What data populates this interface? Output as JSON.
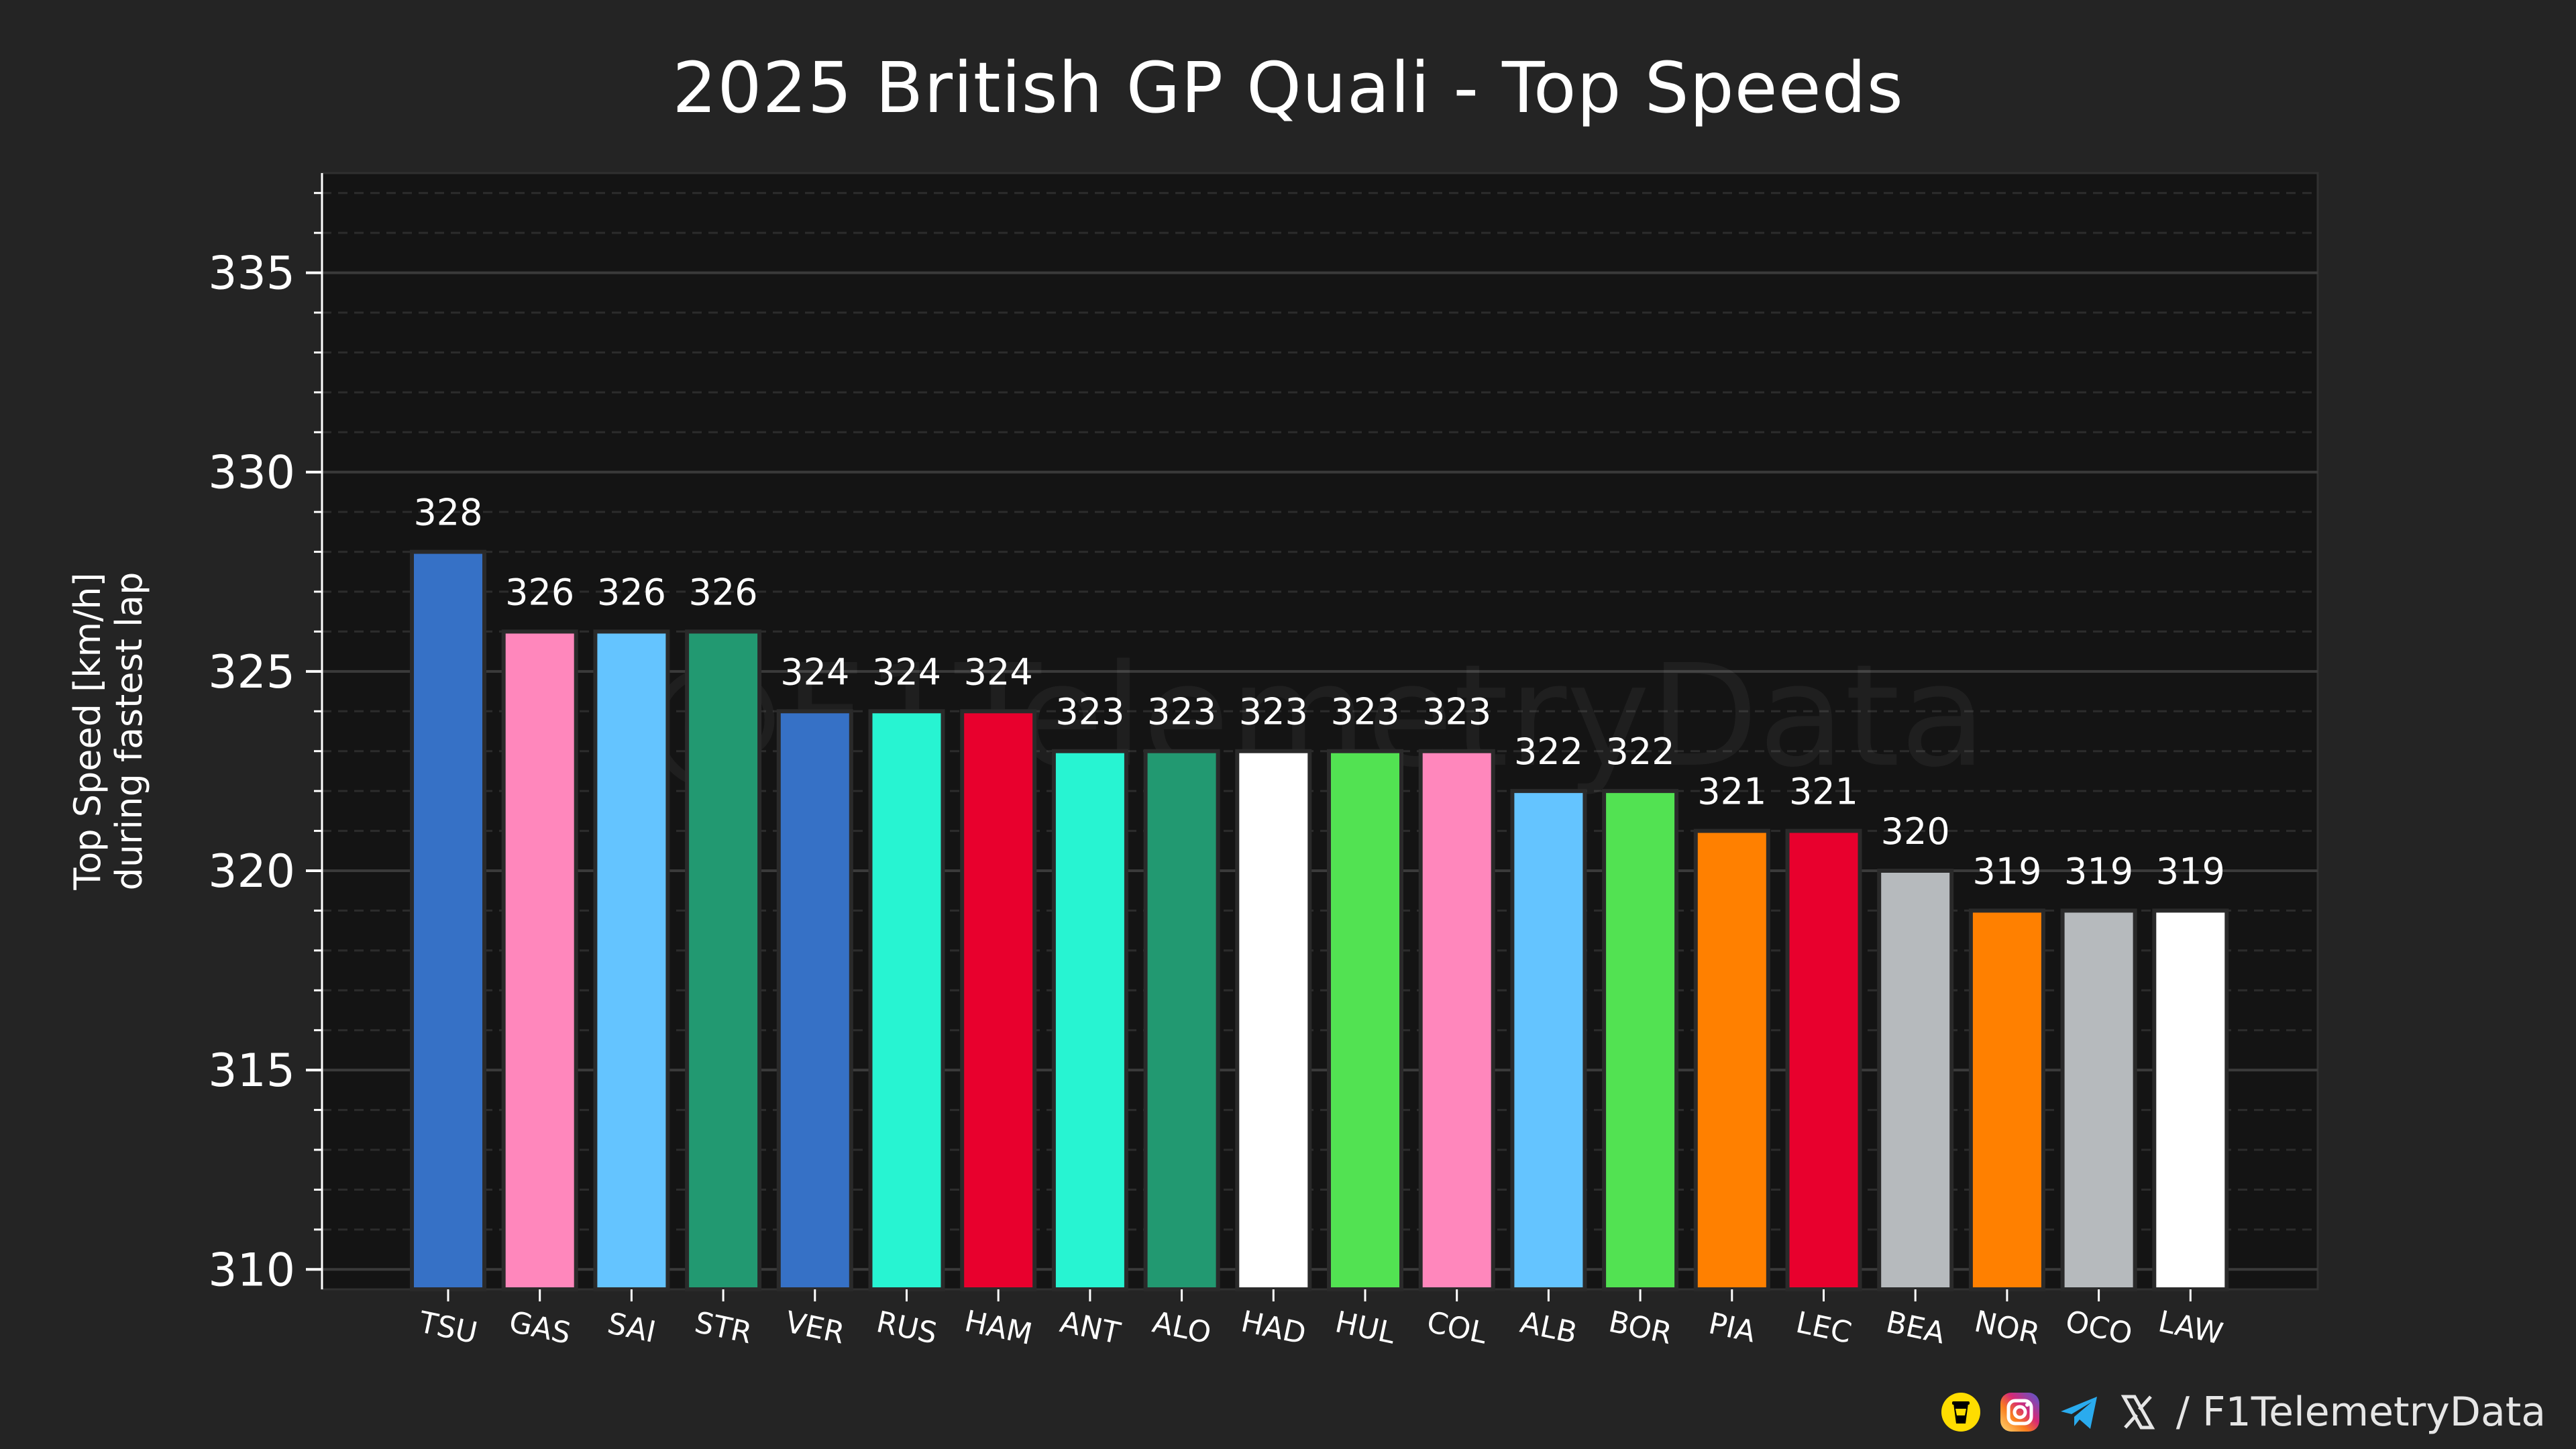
{
  "chart_data": {
    "type": "bar",
    "title": "2025 British GP Quali - Top Speeds",
    "ylabel_lines": [
      "Top Speed [km/h]",
      "during fastest lap"
    ],
    "xlabel": "",
    "ylim": [
      309.5,
      337.5
    ],
    "y_ticks": [
      310,
      315,
      320,
      325,
      330,
      335
    ],
    "y_minor_step": 1,
    "grid": true,
    "categories": [
      "TSU",
      "GAS",
      "SAI",
      "STR",
      "VER",
      "RUS",
      "HAM",
      "ANT",
      "ALO",
      "HAD",
      "HUL",
      "COL",
      "ALB",
      "BOR",
      "PIA",
      "LEC",
      "BEA",
      "NOR",
      "OCO",
      "LAW"
    ],
    "values": [
      328,
      326,
      326,
      326,
      324,
      324,
      324,
      323,
      323,
      323,
      323,
      323,
      322,
      322,
      321,
      321,
      320,
      319,
      319,
      319
    ],
    "colors": [
      "#3671C6",
      "#FF87BC",
      "#64C4FF",
      "#229971",
      "#3671C6",
      "#27F4D2",
      "#E8002D",
      "#27F4D2",
      "#229971",
      "#FFFFFF",
      "#52E252",
      "#FF87BC",
      "#64C4FF",
      "#52E252",
      "#FF8000",
      "#E8002D",
      "#B6BABD",
      "#FF8000",
      "#B6BABD",
      "#FFFFFF"
    ]
  },
  "watermark": "@F1TelemetryData",
  "footer": {
    "handle": "/ F1TelemetryData",
    "icons": [
      "buymeacoffee-icon",
      "instagram-icon",
      "telegram-icon",
      "x-icon"
    ]
  }
}
